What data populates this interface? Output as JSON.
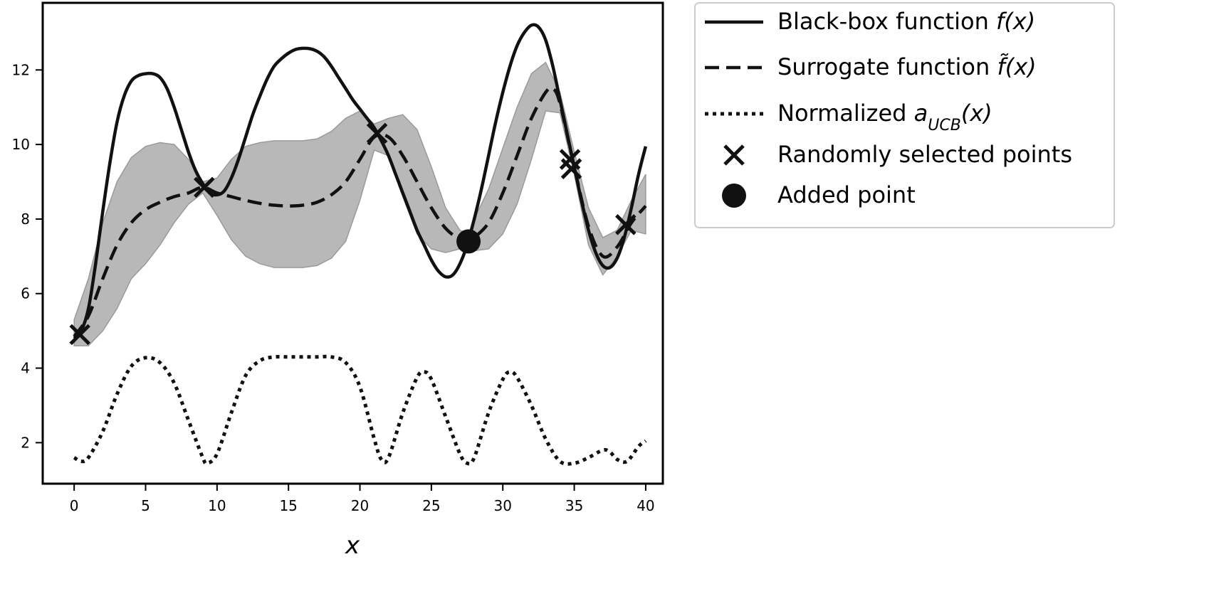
{
  "chart_data": {
    "type": "line",
    "title": "",
    "xlabel": "x",
    "ylabel": "",
    "xlim": [
      -2.2,
      41.2
    ],
    "ylim": [
      0.9,
      13.8
    ],
    "grid": false,
    "legend_placement": "outside-right-top",
    "xticks": [
      0,
      5,
      10,
      15,
      20,
      25,
      30,
      35,
      40
    ],
    "yticks": [
      2,
      4,
      6,
      8,
      10,
      12
    ],
    "legend": [
      {
        "key": "blackbox",
        "text": "Black-box function ",
        "math": "f(x)"
      },
      {
        "key": "surrogate",
        "text": "Surrogate function ",
        "math": "f̃(x)"
      },
      {
        "key": "ucb",
        "text": "Normalized ",
        "math": "a",
        "sub": "UCB",
        "math_tail": "(x)"
      },
      {
        "key": "random",
        "text": "Randomly selected points"
      },
      {
        "key": "added",
        "text": "Added point"
      }
    ],
    "series": [
      {
        "name": "Black-box function f(x)",
        "style": "solid",
        "points": [
          [
            0,
            4.8
          ],
          [
            0.5,
            5.0
          ],
          [
            1.0,
            5.6
          ],
          [
            1.5,
            6.8
          ],
          [
            2.0,
            8.2
          ],
          [
            2.5,
            9.5
          ],
          [
            3.0,
            10.6
          ],
          [
            3.5,
            11.3
          ],
          [
            4.0,
            11.7
          ],
          [
            4.5,
            11.85
          ],
          [
            5.0,
            11.9
          ],
          [
            5.5,
            11.9
          ],
          [
            6.0,
            11.8
          ],
          [
            6.5,
            11.5
          ],
          [
            7.0,
            11.0
          ],
          [
            7.5,
            10.4
          ],
          [
            8.0,
            9.8
          ],
          [
            8.5,
            9.3
          ],
          [
            9.0,
            8.95
          ],
          [
            9.5,
            8.7
          ],
          [
            10.0,
            8.65
          ],
          [
            10.5,
            8.75
          ],
          [
            11.0,
            9.1
          ],
          [
            11.5,
            9.6
          ],
          [
            12.0,
            10.2
          ],
          [
            12.5,
            10.8
          ],
          [
            13.0,
            11.3
          ],
          [
            13.5,
            11.75
          ],
          [
            14.0,
            12.1
          ],
          [
            14.5,
            12.3
          ],
          [
            15.0,
            12.45
          ],
          [
            15.5,
            12.55
          ],
          [
            16.0,
            12.58
          ],
          [
            16.5,
            12.57
          ],
          [
            17.0,
            12.5
          ],
          [
            17.5,
            12.35
          ],
          [
            18.0,
            12.1
          ],
          [
            18.5,
            11.8
          ],
          [
            19.0,
            11.5
          ],
          [
            19.5,
            11.2
          ],
          [
            20.0,
            10.95
          ],
          [
            20.5,
            10.7
          ],
          [
            21.0,
            10.45
          ],
          [
            21.5,
            10.1
          ],
          [
            22.0,
            9.7
          ],
          [
            22.5,
            9.2
          ],
          [
            23.0,
            8.7
          ],
          [
            23.5,
            8.2
          ],
          [
            24.0,
            7.7
          ],
          [
            24.5,
            7.3
          ],
          [
            25.0,
            6.9
          ],
          [
            25.5,
            6.6
          ],
          [
            26.0,
            6.45
          ],
          [
            26.5,
            6.5
          ],
          [
            27.0,
            6.8
          ],
          [
            27.5,
            7.3
          ],
          [
            28.0,
            8.0
          ],
          [
            28.5,
            8.8
          ],
          [
            29.0,
            9.7
          ],
          [
            29.5,
            10.6
          ],
          [
            30.0,
            11.4
          ],
          [
            30.5,
            12.1
          ],
          [
            31.0,
            12.65
          ],
          [
            31.5,
            13.0
          ],
          [
            32.0,
            13.2
          ],
          [
            32.5,
            13.15
          ],
          [
            33.0,
            12.8
          ],
          [
            33.5,
            12.1
          ],
          [
            34.0,
            11.2
          ],
          [
            34.5,
            10.3
          ],
          [
            35.0,
            9.4
          ],
          [
            35.5,
            8.5
          ],
          [
            36.0,
            7.7
          ],
          [
            36.5,
            7.1
          ],
          [
            37.0,
            6.75
          ],
          [
            37.5,
            6.7
          ],
          [
            38.0,
            6.95
          ],
          [
            38.5,
            7.5
          ],
          [
            39.0,
            8.3
          ],
          [
            39.5,
            9.2
          ],
          [
            40.0,
            9.95
          ]
        ]
      },
      {
        "name": "Surrogate function f̃(x)",
        "style": "dashed",
        "points": [
          [
            0,
            4.85
          ],
          [
            1,
            5.4
          ],
          [
            2,
            6.4
          ],
          [
            3,
            7.3
          ],
          [
            4,
            7.9
          ],
          [
            5,
            8.25
          ],
          [
            6,
            8.45
          ],
          [
            7,
            8.6
          ],
          [
            8,
            8.7
          ],
          [
            9,
            8.85
          ],
          [
            10,
            8.7
          ],
          [
            11,
            8.6
          ],
          [
            12,
            8.5
          ],
          [
            13,
            8.42
          ],
          [
            14,
            8.37
          ],
          [
            15,
            8.35
          ],
          [
            16,
            8.37
          ],
          [
            17,
            8.45
          ],
          [
            18,
            8.65
          ],
          [
            19,
            9.0
          ],
          [
            20,
            9.6
          ],
          [
            21,
            10.2
          ],
          [
            22,
            10.2
          ],
          [
            23,
            9.7
          ],
          [
            24,
            9.0
          ],
          [
            25,
            8.3
          ],
          [
            26,
            7.75
          ],
          [
            27,
            7.45
          ],
          [
            27.6,
            7.4
          ],
          [
            28,
            7.5
          ],
          [
            29,
            7.9
          ],
          [
            30,
            8.7
          ],
          [
            31,
            9.7
          ],
          [
            32,
            10.7
          ],
          [
            33,
            11.4
          ],
          [
            33.5,
            11.5
          ],
          [
            34,
            11.1
          ],
          [
            35,
            9.4
          ],
          [
            36,
            7.8
          ],
          [
            37,
            7.0
          ],
          [
            38,
            7.25
          ],
          [
            39,
            7.9
          ],
          [
            40,
            8.35
          ]
        ]
      },
      {
        "name": "Confidence band",
        "style": "band",
        "upper": [
          [
            0,
            5.3
          ],
          [
            1,
            6.4
          ],
          [
            2,
            7.9
          ],
          [
            3,
            9.0
          ],
          [
            4,
            9.65
          ],
          [
            5,
            9.95
          ],
          [
            6,
            10.05
          ],
          [
            7,
            10.0
          ],
          [
            8,
            9.6
          ],
          [
            9,
            9.0
          ],
          [
            10,
            9.1
          ],
          [
            11,
            9.6
          ],
          [
            12,
            9.95
          ],
          [
            13,
            10.05
          ],
          [
            14,
            10.1
          ],
          [
            15,
            10.1
          ],
          [
            16,
            10.1
          ],
          [
            17,
            10.15
          ],
          [
            18,
            10.35
          ],
          [
            19,
            10.7
          ],
          [
            20,
            10.9
          ],
          [
            21,
            10.55
          ],
          [
            22,
            10.7
          ],
          [
            23,
            10.8
          ],
          [
            24,
            10.4
          ],
          [
            25,
            9.4
          ],
          [
            26,
            8.3
          ],
          [
            27,
            7.7
          ],
          [
            27.6,
            7.6
          ],
          [
            28,
            8.0
          ],
          [
            29,
            8.8
          ],
          [
            30,
            9.9
          ],
          [
            31,
            11.0
          ],
          [
            32,
            11.9
          ],
          [
            33,
            12.2
          ],
          [
            34,
            11.4
          ],
          [
            35,
            9.8
          ],
          [
            36,
            8.3
          ],
          [
            37,
            7.5
          ],
          [
            38,
            7.7
          ],
          [
            39,
            8.5
          ],
          [
            40,
            9.2
          ]
        ],
        "lower": [
          [
            0,
            4.6
          ],
          [
            1,
            4.6
          ],
          [
            2,
            5.0
          ],
          [
            3,
            5.6
          ],
          [
            4,
            6.4
          ],
          [
            5,
            6.8
          ],
          [
            6,
            7.3
          ],
          [
            7,
            7.9
          ],
          [
            8,
            8.4
          ],
          [
            9,
            8.7
          ],
          [
            10,
            8.1
          ],
          [
            11,
            7.45
          ],
          [
            12,
            7.0
          ],
          [
            13,
            6.8
          ],
          [
            14,
            6.7
          ],
          [
            15,
            6.7
          ],
          [
            16,
            6.7
          ],
          [
            17,
            6.75
          ],
          [
            18,
            6.95
          ],
          [
            19,
            7.4
          ],
          [
            20,
            8.5
          ],
          [
            21,
            9.85
          ],
          [
            22,
            9.7
          ],
          [
            23,
            8.6
          ],
          [
            24,
            7.6
          ],
          [
            25,
            7.2
          ],
          [
            26,
            7.1
          ],
          [
            27,
            7.2
          ],
          [
            27.6,
            7.3
          ],
          [
            28,
            7.15
          ],
          [
            29,
            7.2
          ],
          [
            30,
            7.6
          ],
          [
            31,
            8.4
          ],
          [
            32,
            9.6
          ],
          [
            33,
            10.9
          ],
          [
            34,
            10.85
          ],
          [
            35,
            9.2
          ],
          [
            36,
            7.3
          ],
          [
            37,
            6.5
          ],
          [
            38,
            7.0
          ],
          [
            39,
            7.7
          ],
          [
            40,
            7.6
          ]
        ]
      },
      {
        "name": "Normalized a_UCB(x)",
        "style": "dotted",
        "points": [
          [
            0,
            1.6
          ],
          [
            0.5,
            1.5
          ],
          [
            1,
            1.6
          ],
          [
            2,
            2.3
          ],
          [
            3,
            3.3
          ],
          [
            4,
            4.05
          ],
          [
            5,
            4.28
          ],
          [
            6,
            4.15
          ],
          [
            7,
            3.6
          ],
          [
            8,
            2.6
          ],
          [
            9,
            1.6
          ],
          [
            9.3,
            1.45
          ],
          [
            10,
            1.7
          ],
          [
            11,
            2.8
          ],
          [
            12,
            3.8
          ],
          [
            13,
            4.2
          ],
          [
            14,
            4.3
          ],
          [
            15,
            4.3
          ],
          [
            16,
            4.3
          ],
          [
            17,
            4.3
          ],
          [
            18,
            4.3
          ],
          [
            19,
            4.15
          ],
          [
            20,
            3.5
          ],
          [
            21,
            2.1
          ],
          [
            21.5,
            1.55
          ],
          [
            22,
            1.6
          ],
          [
            23,
            2.8
          ],
          [
            24,
            3.75
          ],
          [
            24.5,
            3.9
          ],
          [
            25,
            3.7
          ],
          [
            26,
            2.7
          ],
          [
            27,
            1.7
          ],
          [
            27.5,
            1.45
          ],
          [
            28,
            1.6
          ],
          [
            29,
            2.8
          ],
          [
            30,
            3.7
          ],
          [
            30.5,
            3.9
          ],
          [
            31,
            3.75
          ],
          [
            32,
            3.0
          ],
          [
            33,
            2.1
          ],
          [
            34,
            1.5
          ],
          [
            35,
            1.45
          ],
          [
            36,
            1.6
          ],
          [
            37,
            1.8
          ],
          [
            37.5,
            1.75
          ],
          [
            38,
            1.55
          ],
          [
            38.7,
            1.5
          ],
          [
            39.5,
            1.9
          ],
          [
            40,
            2.05
          ]
        ]
      }
    ],
    "random_points": [
      [
        0.4,
        4.9
      ],
      [
        9.1,
        8.85
      ],
      [
        21.2,
        10.3
      ],
      [
        34.7,
        9.6
      ],
      [
        34.8,
        9.35
      ],
      [
        38.6,
        7.85
      ]
    ],
    "added_point": [
      27.6,
      7.4
    ]
  }
}
